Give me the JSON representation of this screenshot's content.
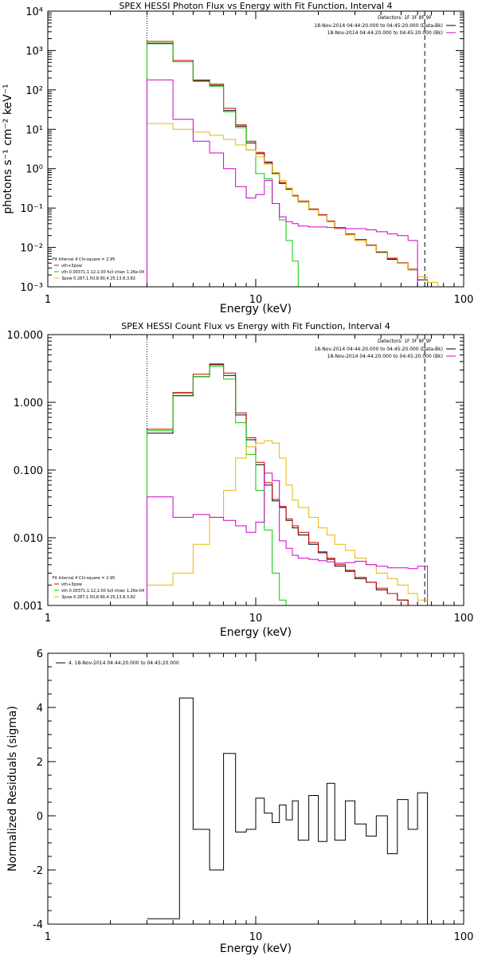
{
  "chart_data": [
    {
      "type": "line",
      "title": "SPEX HESSI Photon Flux vs Energy with Fit Function, Interval 4",
      "xlabel": "Energy (keV)",
      "ylabel": "photons s⁻¹ cm⁻² keV⁻¹",
      "x_scale": "log",
      "y_scale": "log",
      "xlim": [
        1,
        100
      ],
      "ylim": [
        0.001,
        10000
      ],
      "x_ticks": [
        "1",
        "10",
        "100"
      ],
      "y_ticks": [
        "10⁻³",
        "10⁻²",
        "10⁻¹",
        "10⁰",
        "10¹",
        "10²",
        "10³",
        "10⁴"
      ],
      "header_text": "Detectors: 1F 3F 8F 9F",
      "legend_top": [
        {
          "text": "18-Nov-2014 04:44:20.000 to 04:45:20.000 (Data-Bk)",
          "color": "#000000"
        },
        {
          "text": "18-Nov-2014 04:44:20.000 to 04:45:20.000 (Bk)",
          "color": "#cc00cc"
        }
      ],
      "legend_bottom": [
        {
          "text": "Fit Interval  4    Chi-square = 2.95",
          "color": null
        },
        {
          "text": "vth+3pow",
          "color": "#cc0000"
        },
        {
          "text": "vth 0.00371,1.12,1.00  full chian 1.26e-04",
          "color": "#00cc00"
        },
        {
          "text": "3pow 0.287,1.50,8.90,4.25,13.8,3.82",
          "color": "#e6b800"
        }
      ],
      "reference_lines": [
        {
          "x": 3,
          "style": "dotted"
        },
        {
          "x": 65,
          "style": "dashed"
        }
      ],
      "bin_edges": [
        3,
        4,
        5,
        6,
        7,
        8,
        9,
        10,
        11,
        12,
        13,
        14,
        15,
        16,
        18,
        20,
        22,
        24,
        27,
        30,
        34,
        38,
        43,
        48,
        54,
        60,
        67,
        75,
        85,
        100
      ],
      "series": [
        {
          "name": "Data-Bk",
          "color": "#000000",
          "values": [
            1500,
            520,
            170,
            130,
            30,
            12,
            4.5,
            2.4,
            1.4,
            0.75,
            0.42,
            0.3,
            0.2,
            0.14,
            0.09,
            0.065,
            0.045,
            0.03,
            0.021,
            0.015,
            0.011,
            0.0075,
            0.005,
            0.004,
            0.0027,
            0.0015,
            null,
            null,
            null
          ]
        },
        {
          "name": "vth+3pow",
          "color": "#cc0000",
          "values": [
            1700,
            560,
            180,
            140,
            34,
            13,
            5,
            2.6,
            1.5,
            0.8,
            0.45,
            0.32,
            0.21,
            0.15,
            0.095,
            0.068,
            0.047,
            0.032,
            0.022,
            0.016,
            0.0115,
            0.0078,
            0.0053,
            0.0041,
            0.0028,
            null,
            null,
            null,
            null
          ]
        },
        {
          "name": "vth",
          "color": "#00cc00",
          "values": [
            1550,
            520,
            165,
            125,
            28,
            11,
            3,
            0.75,
            0.55,
            0.13,
            0.05,
            0.015,
            0.0045,
            0.001,
            null,
            null,
            null,
            null,
            null,
            null,
            null,
            null,
            null,
            null,
            null,
            null,
            null,
            null,
            null
          ]
        },
        {
          "name": "3pow",
          "color": "#e6b800",
          "values": [
            14,
            10,
            8.5,
            7,
            5.5,
            4,
            3,
            2,
            1.3,
            0.8,
            0.5,
            0.32,
            0.2,
            0.14,
            0.09,
            0.065,
            0.045,
            0.03,
            0.021,
            0.015,
            0.011,
            0.0078,
            0.0055,
            0.004,
            0.0027,
            0.0018,
            0.0013,
            0.001,
            null
          ]
        },
        {
          "name": "Bk",
          "color": "#cc00cc",
          "values": [
            180,
            18,
            5,
            2.5,
            1,
            0.35,
            0.18,
            0.22,
            0.5,
            0.13,
            0.06,
            0.045,
            0.04,
            0.035,
            0.033,
            0.033,
            0.032,
            0.031,
            0.03,
            0.03,
            0.028,
            0.025,
            0.022,
            0.02,
            0.015,
            null,
            null,
            null,
            null
          ]
        }
      ]
    },
    {
      "type": "line",
      "title": "SPEX HESSI Count Flux vs Energy with Fit Function, Interval 4",
      "xlabel": "Energy (keV)",
      "ylabel": "",
      "x_scale": "log",
      "y_scale": "log",
      "xlim": [
        1,
        100
      ],
      "ylim": [
        0.001,
        10
      ],
      "x_ticks": [
        "1",
        "10",
        "100"
      ],
      "y_ticks": [
        "0.001",
        "0.010",
        "0.100",
        "1.000",
        "10.000"
      ],
      "header_text": "Detectors: 1F 3F 8F 9F",
      "legend_top": [
        {
          "text": "18-Nov-2014 04:44:20.000 to 04:45:20.000 (Data-Bk)",
          "color": "#000000"
        },
        {
          "text": "18-Nov-2014 04:44:20.000 to 04:45:20.000 (Bk)",
          "color": "#cc00cc"
        }
      ],
      "legend_bottom": [
        {
          "text": "Fit Interval  4    Chi-square = 2.95",
          "color": null
        },
        {
          "text": "vth+3pow",
          "color": "#cc0000"
        },
        {
          "text": "vth 0.00371,1.12,1.00  full chian 1.26e-04",
          "color": "#00cc00"
        },
        {
          "text": "3pow 0.287,1.50,8.90,4.25,13.8,3.82",
          "color": "#e6b800"
        }
      ],
      "reference_lines": [
        {
          "x": 3,
          "style": "dotted"
        },
        {
          "x": 65,
          "style": "dashed"
        }
      ],
      "bin_edges": [
        3,
        4,
        5,
        6,
        7,
        8,
        9,
        10,
        11,
        12,
        13,
        14,
        15,
        16,
        18,
        20,
        22,
        24,
        27,
        30,
        34,
        38,
        43,
        48,
        54,
        60,
        67,
        75,
        85,
        100
      ],
      "series": [
        {
          "name": "Data-Bk",
          "color": "#000000",
          "values": [
            0.35,
            1.25,
            2.4,
            3.6,
            2.5,
            0.65,
            0.28,
            0.12,
            0.06,
            0.035,
            0.028,
            0.018,
            0.014,
            0.011,
            0.008,
            0.006,
            0.0048,
            0.0038,
            0.0032,
            0.0025,
            0.0022,
            0.0017,
            0.0015,
            0.0012,
            0.001,
            null,
            null,
            null,
            null
          ]
        },
        {
          "name": "vth+3pow",
          "color": "#cc0000",
          "values": [
            0.4,
            1.4,
            2.6,
            3.7,
            2.7,
            0.7,
            0.3,
            0.13,
            0.065,
            0.037,
            0.029,
            0.019,
            0.015,
            0.012,
            0.0085,
            0.0062,
            0.005,
            0.004,
            0.0033,
            0.0026,
            0.0022,
            0.0018,
            0.0015,
            0.0012,
            0.001,
            null,
            null,
            null,
            null
          ]
        },
        {
          "name": "vth",
          "color": "#00cc00",
          "values": [
            0.38,
            1.35,
            2.4,
            3.4,
            2.2,
            0.5,
            0.17,
            0.05,
            0.013,
            0.003,
            0.0012,
            0.001,
            null,
            null,
            null,
            null,
            null,
            null,
            null,
            null,
            null,
            null,
            null,
            null,
            null,
            null,
            null,
            null,
            null
          ]
        },
        {
          "name": "3pow",
          "color": "#e6b800",
          "values": [
            0.002,
            0.003,
            0.008,
            0.02,
            0.05,
            0.15,
            0.22,
            0.25,
            0.27,
            0.25,
            0.15,
            0.06,
            0.036,
            0.028,
            0.02,
            0.014,
            0.011,
            0.008,
            0.0065,
            0.005,
            0.004,
            0.003,
            0.0025,
            0.002,
            0.0015,
            0.0012,
            0.001,
            null,
            null
          ]
        },
        {
          "name": "Bk",
          "color": "#cc00cc",
          "values": [
            0.04,
            0.02,
            0.022,
            0.02,
            0.018,
            0.015,
            0.012,
            0.017,
            0.09,
            0.07,
            0.009,
            0.007,
            0.0055,
            0.005,
            0.0048,
            0.0046,
            0.0044,
            0.0042,
            0.0043,
            0.0045,
            0.004,
            0.0038,
            0.0036,
            0.0036,
            0.0035,
            0.0038,
            null,
            null,
            null
          ]
        }
      ]
    },
    {
      "type": "line",
      "title": "",
      "xlabel": "Energy (keV)",
      "ylabel": "Normalized Residuals (sigma)",
      "x_scale": "log",
      "y_scale": "linear",
      "xlim": [
        1,
        100
      ],
      "ylim": [
        -4,
        6
      ],
      "x_ticks": [
        "1",
        "10",
        "100"
      ],
      "y_ticks": [
        "-4",
        "-2",
        "0",
        "2",
        "4",
        "6"
      ],
      "legend": [
        {
          "text": "4. 18-Nov-2014 04:44:20.000 to 04:45:20.000",
          "color": "#000000"
        }
      ],
      "bin_edges": [
        3,
        4.3,
        5,
        6,
        7,
        8,
        9,
        10,
        11,
        12,
        13,
        14,
        15,
        16,
        18,
        20,
        22,
        24,
        27,
        30,
        34,
        38,
        43,
        48,
        54,
        60,
        67
      ],
      "series": [
        {
          "name": "Residuals",
          "color": "#000000",
          "values": [
            -3.8,
            4.35,
            -0.5,
            -2.0,
            2.3,
            -0.6,
            -0.5,
            0.65,
            0.1,
            -0.25,
            0.4,
            -0.15,
            0.55,
            -0.9,
            0.75,
            -0.95,
            1.2,
            -0.9,
            0.55,
            -0.3,
            -0.75,
            0.0,
            -1.4,
            0.6,
            -0.5,
            0.85
          ]
        }
      ]
    }
  ]
}
